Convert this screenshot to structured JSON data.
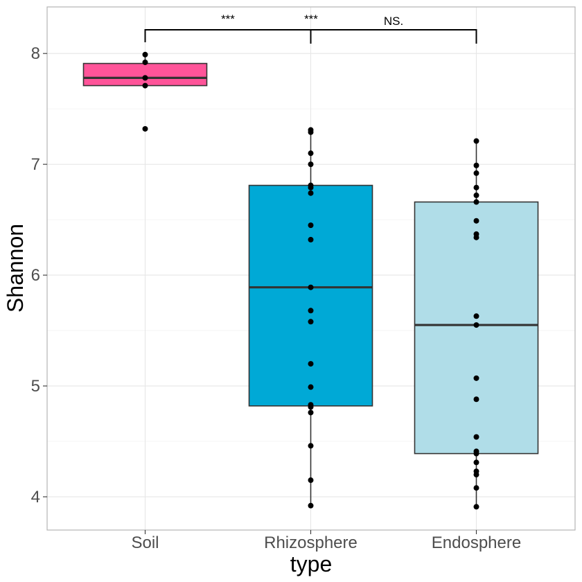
{
  "chart_data": {
    "type": "boxplot",
    "xlabel": "type",
    "ylabel": "Shannon",
    "ylim": [
      3.7,
      8.42
    ],
    "yticks": [
      4,
      5,
      6,
      7,
      8
    ],
    "categories": [
      "Soil",
      "Rhizosphere",
      "Endosphere"
    ],
    "grid": true,
    "legend": "none",
    "boxes": [
      {
        "name": "Soil",
        "color": "#ff5499",
        "q1": 7.71,
        "median": 7.78,
        "q3": 7.91,
        "whisker_low": 7.71,
        "whisker_high": 7.99,
        "points": [
          7.99,
          7.92,
          7.78,
          7.71,
          7.32
        ]
      },
      {
        "name": "Rhizosphere",
        "color": "#00a9d6",
        "q1": 4.82,
        "median": 5.89,
        "q3": 6.81,
        "whisker_low": 3.92,
        "whisker_high": 7.31,
        "points": [
          7.31,
          7.29,
          7.1,
          7.0,
          6.81,
          6.79,
          6.74,
          6.45,
          6.32,
          5.89,
          5.68,
          5.58,
          5.2,
          4.99,
          4.83,
          4.81,
          4.76,
          4.46,
          4.15,
          3.92
        ]
      },
      {
        "name": "Endosphere",
        "color": "#b0dde8",
        "q1": 4.39,
        "median": 5.55,
        "q3": 6.66,
        "whisker_low": 3.91,
        "whisker_high": 7.21,
        "points": [
          7.21,
          6.99,
          6.92,
          6.79,
          6.72,
          6.66,
          6.49,
          6.37,
          6.34,
          5.63,
          5.55,
          5.07,
          4.88,
          4.54,
          4.41,
          4.39,
          4.31,
          4.23,
          4.2,
          4.08,
          3.91
        ]
      }
    ],
    "annotations": [
      {
        "text": "***",
        "pair": [
          "Soil",
          "Rhizosphere"
        ]
      },
      {
        "text": "***",
        "pair": [
          "Soil",
          "Rhizosphere"
        ]
      },
      {
        "text": "NS.",
        "pair": [
          "Rhizosphere",
          "Endosphere"
        ]
      }
    ]
  }
}
